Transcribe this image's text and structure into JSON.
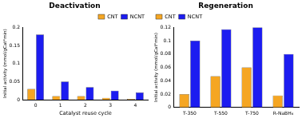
{
  "chart_data": [
    {
      "type": "bar",
      "title": "Deactivation",
      "x_label": "Catalyst reuse cycle",
      "y_label": "Initial activity (mmol/gCat*min)",
      "categories": [
        "0",
        "1",
        "2",
        "3",
        "4"
      ],
      "series": [
        {
          "name": "CNT",
          "color": "#f5a623",
          "values": [
            0.03,
            0.01,
            0.01,
            0.005,
            0.002
          ]
        },
        {
          "name": "NCNT",
          "color": "#1c1cf0",
          "values": [
            0.18,
            0.05,
            0.035,
            0.025,
            0.02
          ]
        }
      ],
      "ylim": [
        0,
        0.2
      ],
      "yticks": [
        0,
        0.05,
        0.1,
        0.15,
        0.2
      ],
      "grid": false,
      "legend": "top-right"
    },
    {
      "type": "bar",
      "title": "Regeneration",
      "y_label": "Initial activity (mmol/gCat*min)",
      "categories": [
        "T-350",
        "T-550",
        "T-750",
        "R-NaBH₄"
      ],
      "series": [
        {
          "name": "CNT",
          "color": "#f5a623",
          "values": [
            0.02,
            0.047,
            0.06,
            0.018
          ]
        },
        {
          "name": "NCNT",
          "color": "#1c1cf0",
          "values": [
            0.1,
            0.117,
            0.12,
            0.08
          ]
        }
      ],
      "ylim": [
        0,
        0.12
      ],
      "yticks": [
        0,
        0.02,
        0.04,
        0.06,
        0.08,
        0.1,
        0.12
      ],
      "grid": false,
      "legend": "top-left"
    }
  ]
}
